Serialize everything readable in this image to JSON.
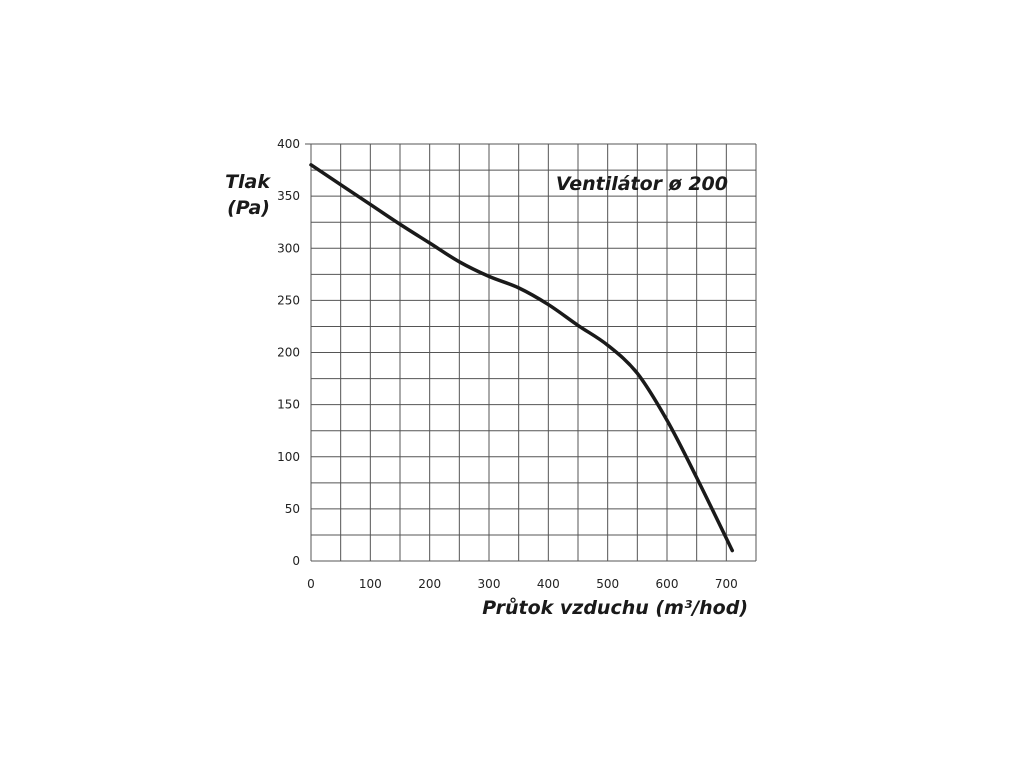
{
  "chart_data": {
    "type": "line",
    "title": "Ventilátor ø 200",
    "xlabel": "Průtok vzduchu (m³/hod)",
    "ylabel_line1": "Tlak",
    "ylabel_line2": "(Pa)",
    "xlim": [
      0,
      750
    ],
    "ylim": [
      0,
      400
    ],
    "xticks": [
      0,
      100,
      200,
      300,
      400,
      500,
      600,
      700
    ],
    "yticks": [
      0,
      50,
      100,
      150,
      200,
      250,
      300,
      350,
      400
    ],
    "grid": true,
    "x_grid_step": 50,
    "y_grid_step": 25,
    "series": [
      {
        "color": "#1a1a1a",
        "x": [
          0,
          50,
          100,
          150,
          200,
          250,
          300,
          350,
          400,
          450,
          500,
          550,
          600,
          650,
          710
        ],
        "y": [
          380,
          361,
          342,
          323,
          305,
          287,
          273,
          262,
          246,
          226,
          207,
          180,
          135,
          80,
          10
        ]
      }
    ]
  }
}
